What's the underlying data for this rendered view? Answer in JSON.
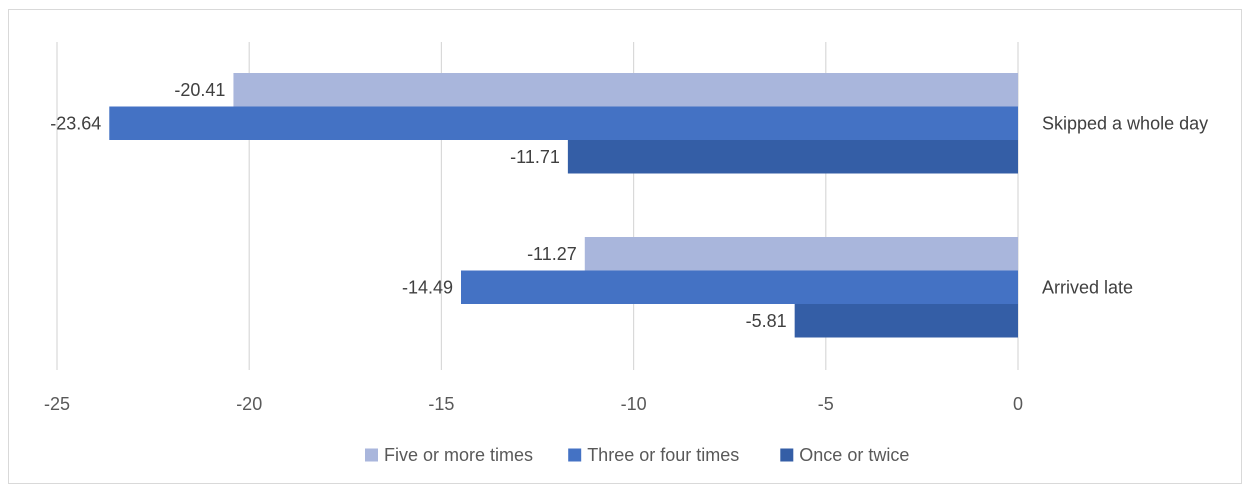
{
  "chart_data": {
    "type": "bar",
    "orientation": "horizontal",
    "categories": [
      "Skipped a whole day",
      "Arrived late"
    ],
    "series": [
      {
        "name": "Five or more times",
        "values": [
          -20.41,
          -11.27
        ],
        "color": "#a9b6dc"
      },
      {
        "name": "Three or four times",
        "values": [
          -23.64,
          -14.49
        ],
        "color": "#4472c4"
      },
      {
        "name": "Once or twice",
        "values": [
          -11.71,
          -5.81
        ],
        "color": "#345ea6"
      }
    ],
    "data_labels": [
      [
        "-20.41",
        "-11.27"
      ],
      [
        "-23.64",
        "-14.49"
      ],
      [
        "-11.71",
        "-5.81"
      ]
    ],
    "xlim": [
      -25,
      0
    ],
    "xticks": [
      -25,
      -20,
      -15,
      -10,
      -5,
      0
    ],
    "xtick_labels": [
      "-25",
      "-20",
      "-15",
      "-10",
      "-5",
      "0"
    ],
    "grid": "vertical",
    "grid_color": "#d9d9d9",
    "legend_position": "bottom",
    "title": "",
    "xlabel": "",
    "ylabel": ""
  }
}
